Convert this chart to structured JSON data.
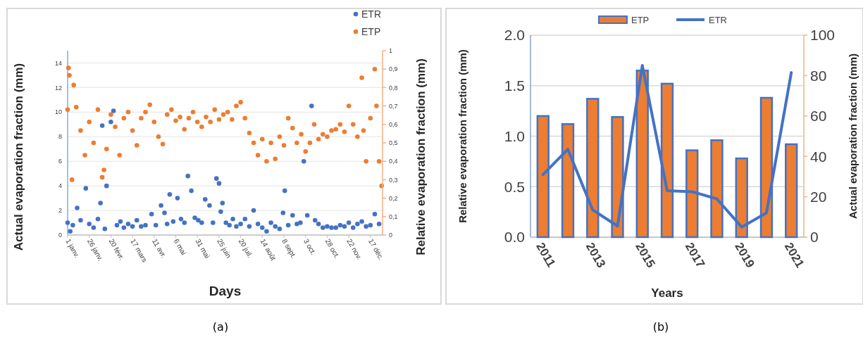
{
  "chart_data": [
    {
      "type": "scatter",
      "xlabel": "Days",
      "ylabel": "Actual evaporation fraction (mm)",
      "y2label": "Relative evaporation fraction  (mm)",
      "annotations": [
        "(a)"
      ],
      "xlim": [
        "--01-01",
        "--12-31"
      ],
      "xticks": [
        {
          "value": "--01-01",
          "label": "1 janv."
        },
        {
          "value": "--01-26",
          "label": "26 janv."
        },
        {
          "value": "--02-20",
          "label": "20 févr."
        },
        {
          "value": "--03-17",
          "label": "17 mars"
        },
        {
          "value": "--04-11",
          "label": "11 avr."
        },
        {
          "value": "--05-06",
          "label": "6 mai"
        },
        {
          "value": "--05-31",
          "label": "31 mai"
        },
        {
          "value": "--06-25",
          "label": "25 juin"
        },
        {
          "value": "--07-20",
          "label": "20 juil."
        },
        {
          "value": "--08-14",
          "label": "14 août"
        },
        {
          "value": "--09-08",
          "label": "8 sept."
        },
        {
          "value": "--10-03",
          "label": "3 oct."
        },
        {
          "value": "--10-28",
          "label": "28 oct."
        },
        {
          "value": "--11-22",
          "label": "22 nov."
        },
        {
          "value": "--12-17",
          "label": "17 déc."
        }
      ],
      "ylim": [
        0,
        15
      ],
      "yticks": [
        0,
        2,
        4,
        6,
        8,
        10,
        12,
        14
      ],
      "y2lim": [
        0,
        1
      ],
      "y2ticks": [
        0,
        {
          "value": 0.1,
          "label": "0,1"
        },
        {
          "value": 0.2,
          "label": "0,2"
        },
        {
          "value": 0.3,
          "label": "0,3"
        },
        {
          "value": 0.4,
          "label": "0,4"
        },
        {
          "value": 0.5,
          "label": "0,5"
        },
        {
          "value": 0.6,
          "label": "0,6"
        },
        {
          "value": 0.7,
          "label": "0,7"
        },
        {
          "value": 0.8,
          "label": "0,8"
        },
        {
          "value": 0.9,
          "label": "0,9"
        },
        1
      ],
      "grid": "y",
      "legend": "top right",
      "marker": "circle",
      "series": [
        {
          "name": "ETR",
          "color": "#4472c4",
          "x": [
            "--01-01",
            "--01-04",
            "--01-07",
            "--01-12",
            "--01-16",
            "--01-22",
            "--01-26",
            "--01-31",
            "--02-05",
            "--02-08",
            "--02-10",
            "--02-13",
            "--02-15",
            "--02-20",
            "--02-23",
            "--02-27",
            "--03-03",
            "--03-07",
            "--03-12",
            "--03-17",
            "--03-22",
            "--03-27",
            "--04-01",
            "--04-08",
            "--04-13",
            "--04-19",
            "--04-23",
            "--04-26",
            "--04-29",
            "--05-03",
            "--05-08",
            "--05-12",
            "--05-16",
            "--05-20",
            "--05-24",
            "--05-28",
            "--06-01",
            "--06-05",
            "--06-09",
            "--06-14",
            "--06-18",
            "--06-22",
            "--06-25",
            "--06-27",
            "--06-29",
            "--07-03",
            "--07-07",
            "--07-11",
            "--07-15",
            "--07-20",
            "--07-25",
            "--07-30",
            "--08-04",
            "--08-09",
            "--08-14",
            "--08-19",
            "--08-24",
            "--08-29",
            "--09-03",
            "--09-07",
            "--09-09",
            "--09-13",
            "--09-18",
            "--09-23",
            "--09-27",
            "--10-01",
            "--10-05",
            "--10-10",
            "--10-14",
            "--10-18",
            "--10-23",
            "--10-28",
            "--11-02",
            "--11-07",
            "--11-12",
            "--11-17",
            "--11-22",
            "--11-27",
            "--12-02",
            "--12-07",
            "--12-12",
            "--12-17",
            "--12-22",
            "--12-27"
          ],
          "values": [
            1.0,
            0.3,
            0.8,
            2.2,
            1.2,
            3.8,
            0.9,
            0.6,
            1.3,
            2.6,
            8.9,
            0.5,
            4.0,
            9.2,
            10.1,
            0.8,
            1.1,
            0.6,
            0.9,
            0.7,
            1.2,
            0.7,
            0.8,
            1.7,
            0.8,
            2.4,
            1.8,
            0.9,
            3.3,
            1.1,
            3.0,
            1.3,
            1.0,
            4.8,
            3.6,
            1.4,
            1.2,
            1.0,
            2.9,
            2.4,
            1.0,
            4.6,
            4.2,
            1.9,
            2.6,
            1.0,
            0.8,
            1.3,
            0.7,
            0.9,
            1.3,
            0.7,
            2.0,
            0.9,
            0.6,
            0.3,
            1.0,
            0.7,
            0.5,
            1.8,
            3.6,
            0.8,
            1.6,
            0.9,
            1.0,
            6.0,
            1.6,
            10.5,
            1.2,
            0.9,
            0.6,
            0.7,
            0.6,
            0.6,
            0.8,
            0.7,
            1.0,
            0.6,
            0.9,
            1.1,
            0.7,
            0.8,
            1.7,
            0.9
          ]
        },
        {
          "name": "ETP",
          "color": "#ed7d31",
          "x": [
            "--01-01",
            "--01-02",
            "--01-03",
            "--01-06",
            "--01-08",
            "--01-11",
            "--01-16",
            "--01-21",
            "--01-26",
            "--01-31",
            "--02-05",
            "--02-10",
            "--02-12",
            "--02-15",
            "--02-20",
            "--02-25",
            "--03-02",
            "--03-07",
            "--03-12",
            "--03-17",
            "--03-22",
            "--03-27",
            "--04-01",
            "--04-06",
            "--04-11",
            "--04-16",
            "--04-21",
            "--04-26",
            "--05-01",
            "--05-06",
            "--05-11",
            "--05-16",
            "--05-21",
            "--05-26",
            "--05-31",
            "--06-05",
            "--06-10",
            "--06-15",
            "--06-20",
            "--06-25",
            "--06-30",
            "--07-05",
            "--07-10",
            "--07-15",
            "--07-20",
            "--07-25",
            "--07-30",
            "--08-04",
            "--08-09",
            "--08-14",
            "--08-19",
            "--08-24",
            "--08-29",
            "--09-03",
            "--09-08",
            "--09-13",
            "--09-18",
            "--09-23",
            "--09-28",
            "--10-03",
            "--10-08",
            "--10-13",
            "--10-18",
            "--10-23",
            "--10-28",
            "--11-02",
            "--11-07",
            "--11-12",
            "--11-17",
            "--11-22",
            "--11-27",
            "--12-02",
            "--12-07",
            "--12-09",
            "--12-12",
            "--12-17",
            "--12-22",
            "--12-24",
            "--12-27",
            "--12-30"
          ],
          "values": [
            10.2,
            13.6,
            13.0,
            4.5,
            12.2,
            10.4,
            8.5,
            6.5,
            9.2,
            7.5,
            10.2,
            4.7,
            5.3,
            7.0,
            9.8,
            8.8,
            6.5,
            9.5,
            10.0,
            8.5,
            7.3,
            9.5,
            10.0,
            10.6,
            9.2,
            8.0,
            7.4,
            9.8,
            10.2,
            9.3,
            9.6,
            8.6,
            9.5,
            10.0,
            9.2,
            8.8,
            9.6,
            9.2,
            10.2,
            9.4,
            9.8,
            10.0,
            9.4,
            10.5,
            10.8,
            9.5,
            8.3,
            7.5,
            6.5,
            7.8,
            6.0,
            7.5,
            6.2,
            8.0,
            7.3,
            9.5,
            8.7,
            7.5,
            8.2,
            6.8,
            7.5,
            9.0,
            7.8,
            8.2,
            8.0,
            8.5,
            8.6,
            9.0,
            8.4,
            10.5,
            9.0,
            8.0,
            12.8,
            8.5,
            6.0,
            9.5,
            13.5,
            10.5,
            6.0,
            4.0
          ]
        }
      ]
    },
    {
      "type": "bar",
      "xlabel": "Years",
      "ylabel": "Relative evaporation fraction (mm)",
      "y2label": "Actual evaporation fraction (mm)",
      "annotations": [
        "(b)"
      ],
      "categories": [
        "2011",
        null,
        "2013",
        null,
        "2015",
        null,
        "2017",
        null,
        "2019",
        null,
        "2021"
      ],
      "ylim": [
        0,
        2
      ],
      "yticks": [
        {
          "value": 0,
          "label": "0.0"
        },
        {
          "value": 0.5,
          "label": "0.5"
        },
        {
          "value": 1,
          "label": "1.0"
        },
        {
          "value": 1.5,
          "label": "1.5"
        },
        {
          "value": 2,
          "label": "2.0"
        }
      ],
      "y2lim": [
        0,
        100
      ],
      "y2ticks": [
        0,
        20,
        40,
        60,
        80,
        100
      ],
      "grid": "y",
      "legend": "top",
      "series": [
        {
          "name": "ETP",
          "axis": "y2",
          "color": "#ed7d31",
          "values": [
            60,
            56,
            68.5,
            59.5,
            82.5,
            76,
            43,
            48,
            39,
            69,
            46
          ]
        },
        {
          "name": "ETR",
          "type": "line",
          "axis": "y",
          "color": "#4472c4",
          "values": [
            0.62,
            0.87,
            0.27,
            0.11,
            1.7,
            0.46,
            0.45,
            0.38,
            0.1,
            0.24,
            1.63
          ]
        }
      ]
    }
  ]
}
